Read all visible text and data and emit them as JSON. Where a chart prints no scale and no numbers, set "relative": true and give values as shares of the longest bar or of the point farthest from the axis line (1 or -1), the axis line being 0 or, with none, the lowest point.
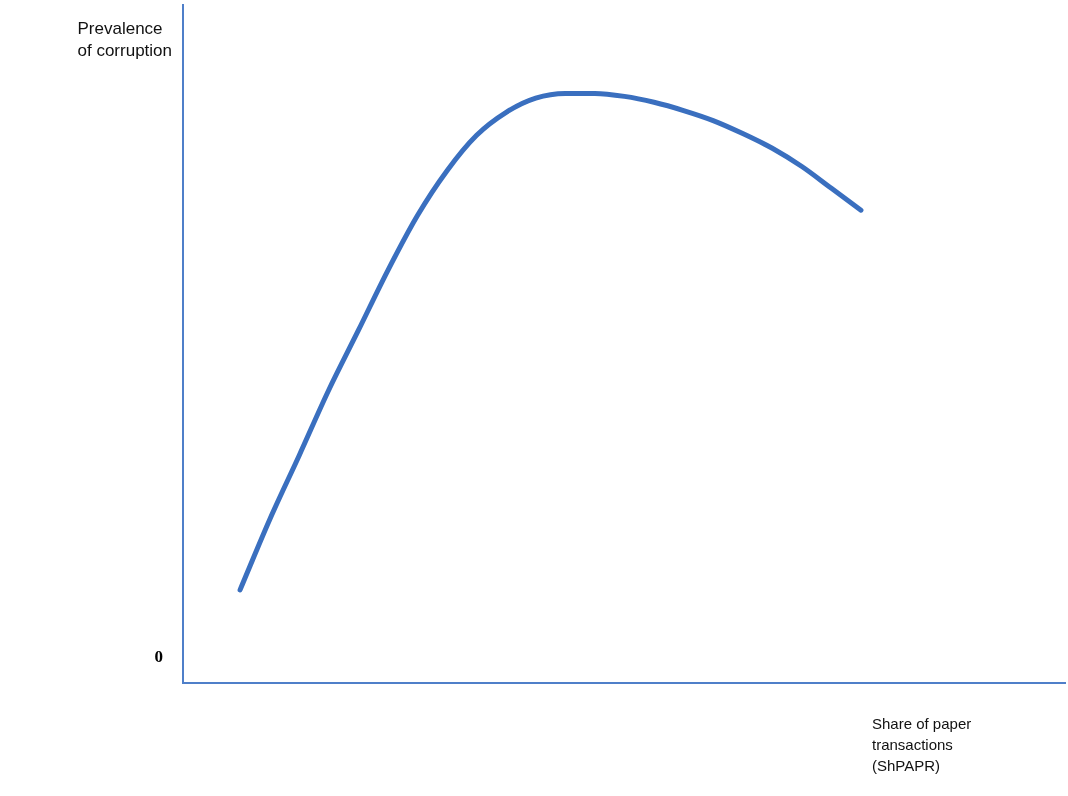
{
  "chart_data": {
    "type": "line",
    "relative": true,
    "ylabel": "Prevalence\nof corruption",
    "xlabel": "Share of paper transactions (ShPAPR)",
    "annotations": [
      "0"
    ],
    "categories": [
      null,
      null,
      null,
      null,
      null,
      null,
      null,
      null,
      null,
      null,
      null,
      null,
      null,
      null,
      null,
      null,
      null,
      null,
      null,
      null,
      null,
      null
    ],
    "series": [
      {
        "color": "#3a6fbf",
        "values": [
          0.158,
          0.277,
          0.386,
          0.497,
          0.598,
          0.7,
          0.793,
          0.869,
          0.929,
          0.968,
          0.992,
          1.0,
          1.0,
          0.995,
          0.985,
          0.971,
          0.954,
          0.932,
          0.907,
          0.876,
          0.839,
          0.802
        ]
      }
    ],
    "legend": false,
    "grid": false,
    "marker": "none",
    "line_style": "solid"
  }
}
